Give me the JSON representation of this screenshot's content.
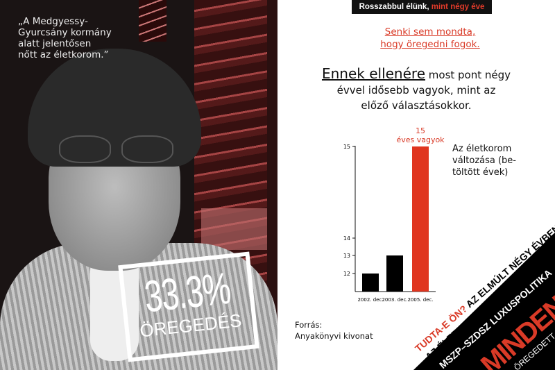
{
  "photo": {
    "quote": [
      "„A Medgyessy-",
      "Gyurcsány kormány",
      "alatt jelentősen",
      "nőtt az életkorom.”"
    ],
    "stat_value": "33.3%",
    "stat_label": "ÖREGEDÉS"
  },
  "header": {
    "banner_white": "Rosszabbul élünk,",
    "banner_red": "mint négy éve",
    "subtitle": [
      "Senki sem mondta,",
      "hogy öregedni fogok."
    ],
    "headline_big": "Ennek ellenére",
    "headline_rest": "most pont négy",
    "headline_lines": [
      "évvel idősebb vagyok, mint az",
      "előző választásokkor."
    ]
  },
  "legend_text": [
    "Az életkorom",
    "változása (be-",
    "töltött évek)"
  ],
  "source": {
    "label": "Forrás:",
    "value": "Anyakönyvi kivonat"
  },
  "corner": {
    "line1_red": "TUDTA-E ÖN?",
    "line1_black": "AZ ELMÚLT NÉGY ÉVBEN",
    "line2": "AZ ÉLETKOROM EGYHARMADÁVAL NŐTT.",
    "line3": "MSZP–SZDSZ LUXUSPOLITIKA",
    "line4": "MINDENKI",
    "line5": "ÖREGEDETT"
  },
  "colors": {
    "accent_red": "#d93a27",
    "black": "#000000"
  },
  "chart_data": {
    "type": "bar",
    "categories": [
      "2002. dec.",
      "2003. dec.",
      "2005. dec."
    ],
    "values": [
      12,
      13,
      15
    ],
    "bar_colors": [
      "#000000",
      "#000000",
      "#e0351f"
    ],
    "y_ticks": [
      "12",
      "13",
      "14",
      "15"
    ],
    "annotation": [
      "15",
      "éves vagyok"
    ],
    "grid": false
  }
}
